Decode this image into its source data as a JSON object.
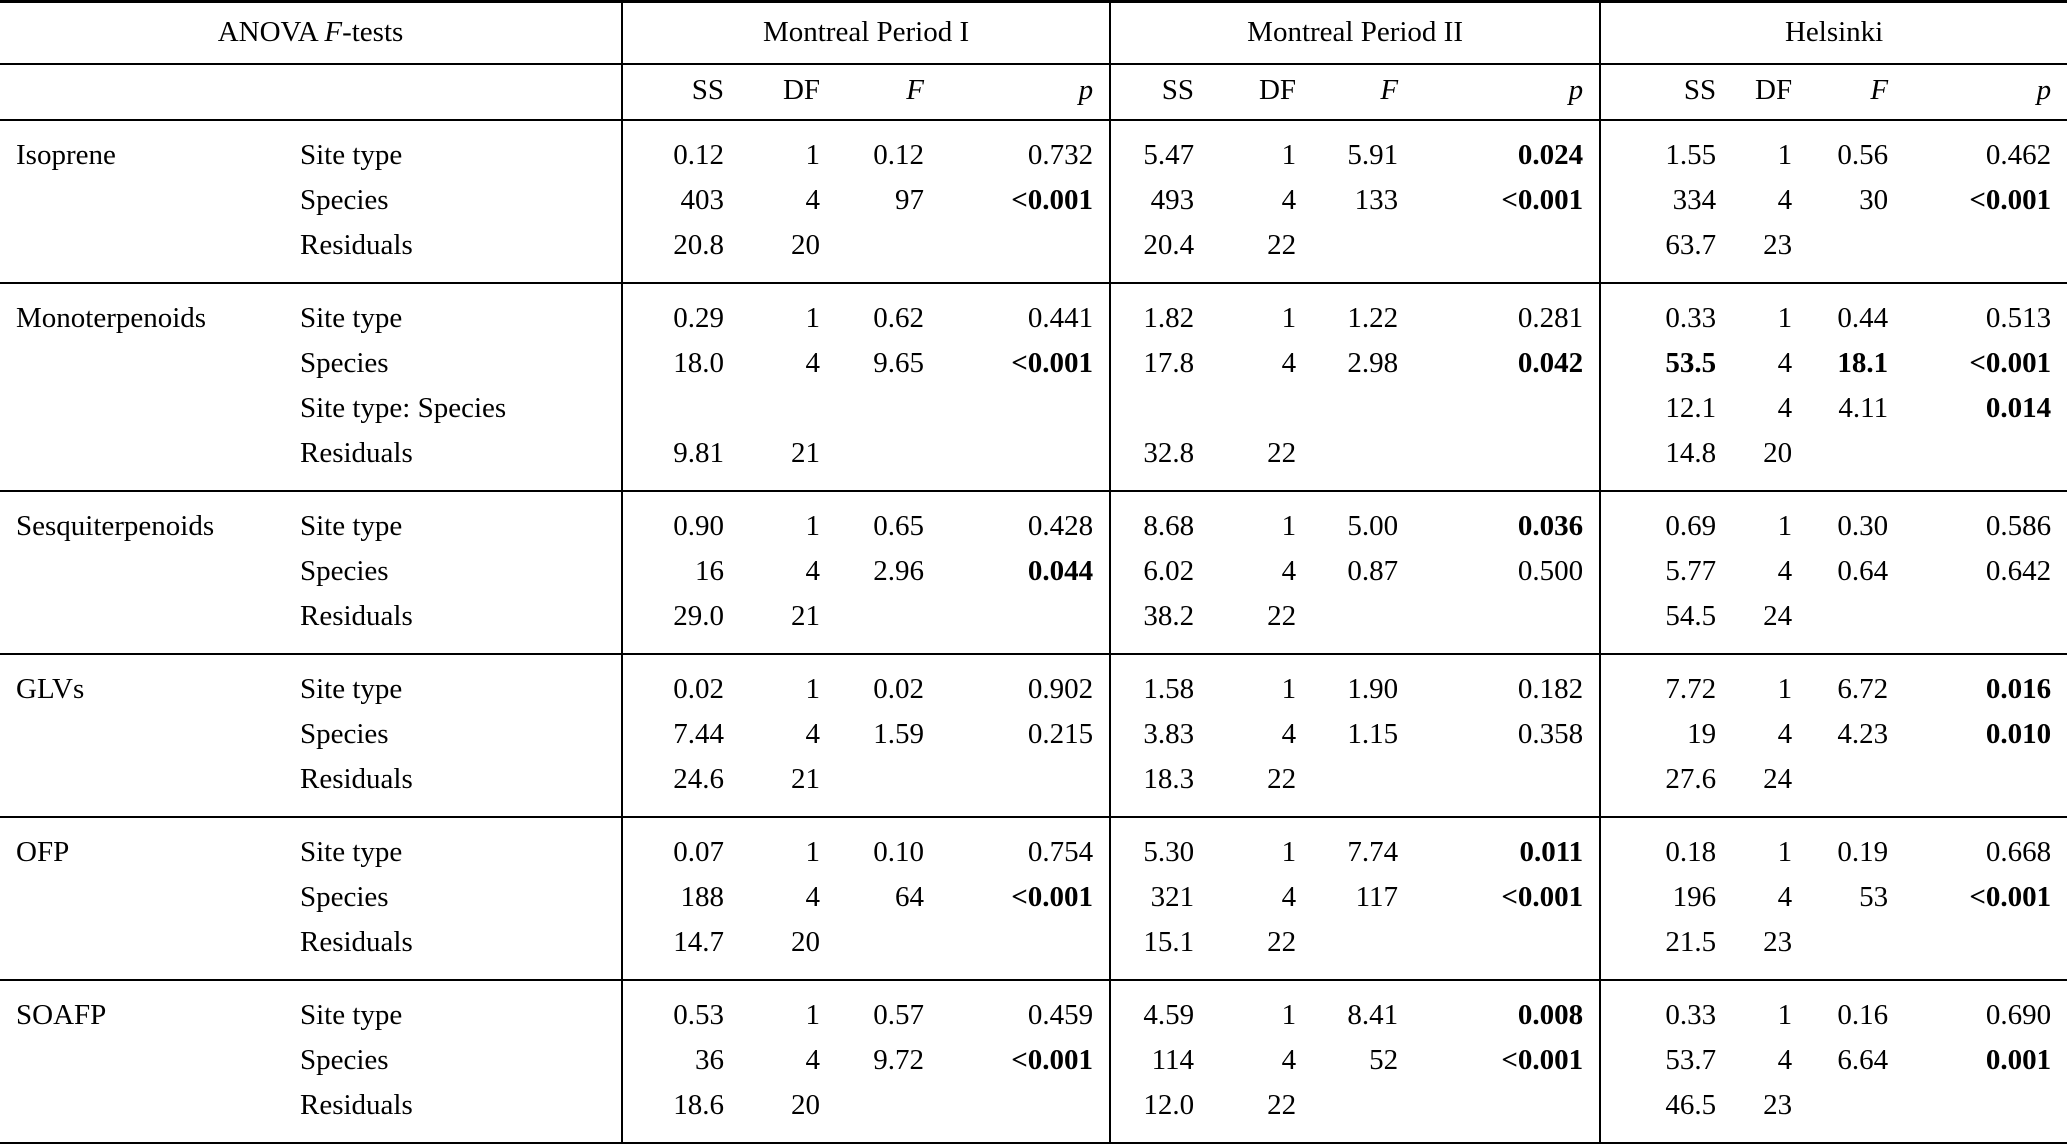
{
  "title": {
    "prefix": "ANOVA ",
    "italic": "F",
    "suffix": "-tests"
  },
  "groups": [
    "Montreal Period I",
    "Montreal Period II",
    "Helsinki"
  ],
  "columns": [
    {
      "label": "SS",
      "italic": false
    },
    {
      "label": "DF",
      "italic": false
    },
    {
      "label": "F",
      "italic": true
    },
    {
      "label": "p",
      "italic": true
    }
  ],
  "compounds": [
    {
      "name": "Isoprene",
      "rows": [
        {
          "effect": "Site type",
          "cells": [
            [
              "0.12",
              0
            ],
            [
              "1",
              0
            ],
            [
              "0.12",
              0
            ],
            [
              "0.732",
              0
            ],
            [
              "5.47",
              0
            ],
            [
              "1",
              0
            ],
            [
              "5.91",
              0
            ],
            [
              "0.024",
              1
            ],
            [
              "1.55",
              0
            ],
            [
              "1",
              0
            ],
            [
              "0.56",
              0
            ],
            [
              "0.462",
              0
            ]
          ]
        },
        {
          "effect": "Species",
          "cells": [
            [
              "403",
              0
            ],
            [
              "4",
              0
            ],
            [
              "97",
              0
            ],
            [
              "<0.001",
              1
            ],
            [
              "493",
              0
            ],
            [
              "4",
              0
            ],
            [
              "133",
              0
            ],
            [
              "<0.001",
              1
            ],
            [
              "334",
              0
            ],
            [
              "4",
              0
            ],
            [
              "30",
              0
            ],
            [
              "<0.001",
              1
            ]
          ]
        },
        {
          "effect": "Residuals",
          "cells": [
            [
              "20.8",
              0
            ],
            [
              "20",
              0
            ],
            [
              "",
              0
            ],
            [
              "",
              0
            ],
            [
              "20.4",
              0
            ],
            [
              "22",
              0
            ],
            [
              "",
              0
            ],
            [
              "",
              0
            ],
            [
              "63.7",
              0
            ],
            [
              "23",
              0
            ],
            [
              "",
              0
            ],
            [
              "",
              0
            ]
          ]
        }
      ]
    },
    {
      "name": "Monoterpenoids",
      "rows": [
        {
          "effect": "Site type",
          "cells": [
            [
              "0.29",
              0
            ],
            [
              "1",
              0
            ],
            [
              "0.62",
              0
            ],
            [
              "0.441",
              0
            ],
            [
              "1.82",
              0
            ],
            [
              "1",
              0
            ],
            [
              "1.22",
              0
            ],
            [
              "0.281",
              0
            ],
            [
              "0.33",
              0
            ],
            [
              "1",
              0
            ],
            [
              "0.44",
              0
            ],
            [
              "0.513",
              0
            ]
          ]
        },
        {
          "effect": "Species",
          "cells": [
            [
              "18.0",
              0
            ],
            [
              "4",
              0
            ],
            [
              "9.65",
              0
            ],
            [
              "<0.001",
              1
            ],
            [
              "17.8",
              0
            ],
            [
              "4",
              0
            ],
            [
              "2.98",
              0
            ],
            [
              "0.042",
              1
            ],
            [
              "53.5",
              1
            ],
            [
              "4",
              0
            ],
            [
              "18.1",
              1
            ],
            [
              "<0.001",
              1
            ]
          ]
        },
        {
          "effect": "Site type: Species",
          "cells": [
            [
              "",
              0
            ],
            [
              "",
              0
            ],
            [
              "",
              0
            ],
            [
              "",
              0
            ],
            [
              "",
              0
            ],
            [
              "",
              0
            ],
            [
              "",
              0
            ],
            [
              "",
              0
            ],
            [
              "12.1",
              0
            ],
            [
              "4",
              0
            ],
            [
              "4.11",
              0
            ],
            [
              "0.014",
              1
            ]
          ]
        },
        {
          "effect": "Residuals",
          "cells": [
            [
              "9.81",
              0
            ],
            [
              "21",
              0
            ],
            [
              "",
              0
            ],
            [
              "",
              0
            ],
            [
              "32.8",
              0
            ],
            [
              "22",
              0
            ],
            [
              "",
              0
            ],
            [
              "",
              0
            ],
            [
              "14.8",
              0
            ],
            [
              "20",
              0
            ],
            [
              "",
              0
            ],
            [
              "",
              0
            ]
          ]
        }
      ]
    },
    {
      "name": "Sesquiterpenoids",
      "rows": [
        {
          "effect": "Site type",
          "cells": [
            [
              "0.90",
              0
            ],
            [
              "1",
              0
            ],
            [
              "0.65",
              0
            ],
            [
              "0.428",
              0
            ],
            [
              "8.68",
              0
            ],
            [
              "1",
              0
            ],
            [
              "5.00",
              0
            ],
            [
              "0.036",
              1
            ],
            [
              "0.69",
              0
            ],
            [
              "1",
              0
            ],
            [
              "0.30",
              0
            ],
            [
              "0.586",
              0
            ]
          ]
        },
        {
          "effect": "Species",
          "cells": [
            [
              "16",
              0
            ],
            [
              "4",
              0
            ],
            [
              "2.96",
              0
            ],
            [
              "0.044",
              1
            ],
            [
              "6.02",
              0
            ],
            [
              "4",
              0
            ],
            [
              "0.87",
              0
            ],
            [
              "0.500",
              0
            ],
            [
              "5.77",
              0
            ],
            [
              "4",
              0
            ],
            [
              "0.64",
              0
            ],
            [
              "0.642",
              0
            ]
          ]
        },
        {
          "effect": "Residuals",
          "cells": [
            [
              "29.0",
              0
            ],
            [
              "21",
              0
            ],
            [
              "",
              0
            ],
            [
              "",
              0
            ],
            [
              "38.2",
              0
            ],
            [
              "22",
              0
            ],
            [
              "",
              0
            ],
            [
              "",
              0
            ],
            [
              "54.5",
              0
            ],
            [
              "24",
              0
            ],
            [
              "",
              0
            ],
            [
              "",
              0
            ]
          ]
        }
      ]
    },
    {
      "name": "GLVs",
      "rows": [
        {
          "effect": "Site type",
          "cells": [
            [
              "0.02",
              0
            ],
            [
              "1",
              0
            ],
            [
              "0.02",
              0
            ],
            [
              "0.902",
              0
            ],
            [
              "1.58",
              0
            ],
            [
              "1",
              0
            ],
            [
              "1.90",
              0
            ],
            [
              "0.182",
              0
            ],
            [
              "7.72",
              0
            ],
            [
              "1",
              0
            ],
            [
              "6.72",
              0
            ],
            [
              "0.016",
              1
            ]
          ]
        },
        {
          "effect": "Species",
          "cells": [
            [
              "7.44",
              0
            ],
            [
              "4",
              0
            ],
            [
              "1.59",
              0
            ],
            [
              "0.215",
              0
            ],
            [
              "3.83",
              0
            ],
            [
              "4",
              0
            ],
            [
              "1.15",
              0
            ],
            [
              "0.358",
              0
            ],
            [
              "19",
              0
            ],
            [
              "4",
              0
            ],
            [
              "4.23",
              0
            ],
            [
              "0.010",
              1
            ]
          ]
        },
        {
          "effect": "Residuals",
          "cells": [
            [
              "24.6",
              0
            ],
            [
              "21",
              0
            ],
            [
              "",
              0
            ],
            [
              "",
              0
            ],
            [
              "18.3",
              0
            ],
            [
              "22",
              0
            ],
            [
              "",
              0
            ],
            [
              "",
              0
            ],
            [
              "27.6",
              0
            ],
            [
              "24",
              0
            ],
            [
              "",
              0
            ],
            [
              "",
              0
            ]
          ]
        }
      ]
    },
    {
      "name": "OFP",
      "rows": [
        {
          "effect": "Site type",
          "cells": [
            [
              "0.07",
              0
            ],
            [
              "1",
              0
            ],
            [
              "0.10",
              0
            ],
            [
              "0.754",
              0
            ],
            [
              "5.30",
              0
            ],
            [
              "1",
              0
            ],
            [
              "7.74",
              0
            ],
            [
              "0.011",
              1
            ],
            [
              "0.18",
              0
            ],
            [
              "1",
              0
            ],
            [
              "0.19",
              0
            ],
            [
              "0.668",
              0
            ]
          ]
        },
        {
          "effect": "Species",
          "cells": [
            [
              "188",
              0
            ],
            [
              "4",
              0
            ],
            [
              "64",
              0
            ],
            [
              "<0.001",
              1
            ],
            [
              "321",
              0
            ],
            [
              "4",
              0
            ],
            [
              "117",
              0
            ],
            [
              "<0.001",
              1
            ],
            [
              "196",
              0
            ],
            [
              "4",
              0
            ],
            [
              "53",
              0
            ],
            [
              "<0.001",
              1
            ]
          ]
        },
        {
          "effect": "Residuals",
          "cells": [
            [
              "14.7",
              0
            ],
            [
              "20",
              0
            ],
            [
              "",
              0
            ],
            [
              "",
              0
            ],
            [
              "15.1",
              0
            ],
            [
              "22",
              0
            ],
            [
              "",
              0
            ],
            [
              "",
              0
            ],
            [
              "21.5",
              0
            ],
            [
              "23",
              0
            ],
            [
              "",
              0
            ],
            [
              "",
              0
            ]
          ]
        }
      ]
    },
    {
      "name": "SOAFP",
      "rows": [
        {
          "effect": "Site type",
          "cells": [
            [
              "0.53",
              0
            ],
            [
              "1",
              0
            ],
            [
              "0.57",
              0
            ],
            [
              "0.459",
              0
            ],
            [
              "4.59",
              0
            ],
            [
              "1",
              0
            ],
            [
              "8.41",
              0
            ],
            [
              "0.008",
              1
            ],
            [
              "0.33",
              0
            ],
            [
              "1",
              0
            ],
            [
              "0.16",
              0
            ],
            [
              "0.690",
              0
            ]
          ]
        },
        {
          "effect": "Species",
          "cells": [
            [
              "36",
              0
            ],
            [
              "4",
              0
            ],
            [
              "9.72",
              0
            ],
            [
              "<0.001",
              1
            ],
            [
              "114",
              0
            ],
            [
              "4",
              0
            ],
            [
              "52",
              0
            ],
            [
              "<0.001",
              1
            ],
            [
              "53.7",
              0
            ],
            [
              "4",
              0
            ],
            [
              "6.64",
              0
            ],
            [
              "0.001",
              1
            ]
          ]
        },
        {
          "effect": "Residuals",
          "cells": [
            [
              "18.6",
              0
            ],
            [
              "20",
              0
            ],
            [
              "",
              0
            ],
            [
              "",
              0
            ],
            [
              "12.0",
              0
            ],
            [
              "22",
              0
            ],
            [
              "",
              0
            ],
            [
              "",
              0
            ],
            [
              "46.5",
              0
            ],
            [
              "23",
              0
            ],
            [
              "",
              0
            ],
            [
              "",
              0
            ]
          ]
        }
      ]
    }
  ]
}
